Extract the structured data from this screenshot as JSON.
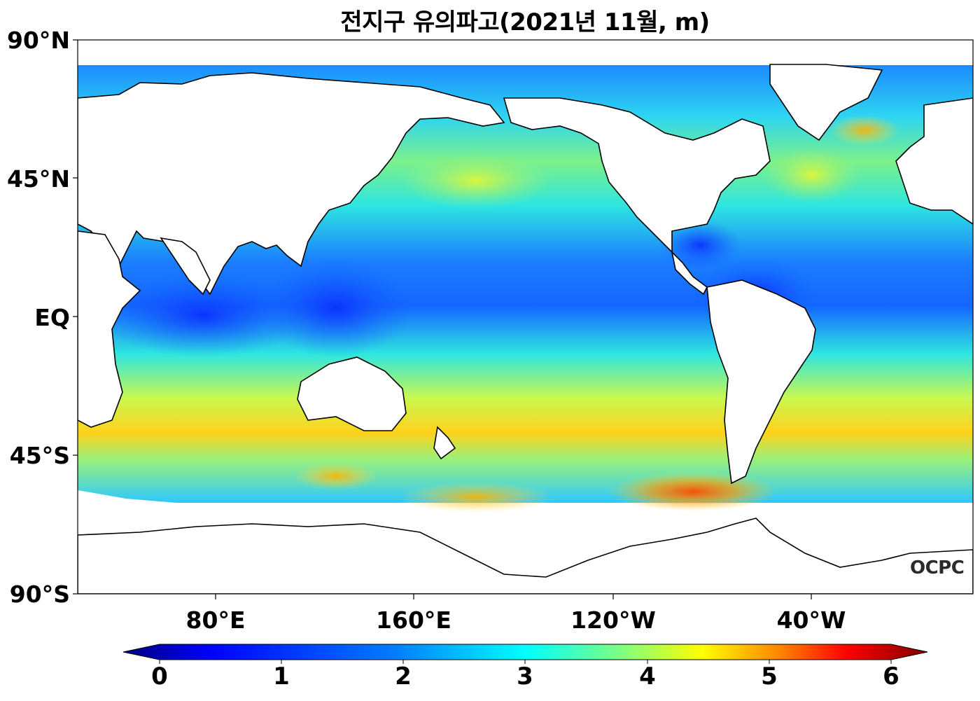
{
  "title": "전지구 유의파고(2021년 11월, m)",
  "y_ticks": [
    "90°N",
    "45°N",
    "EQ",
    "45°S",
    "90°S"
  ],
  "x_ticks": [
    "80°E",
    "160°E",
    "120°W",
    "40°W"
  ],
  "colorbar": {
    "ticks": [
      "0",
      "1",
      "2",
      "3",
      "4",
      "5",
      "6"
    ],
    "min": 0,
    "max": 6,
    "colors": [
      "#00007f",
      "#0000ff",
      "#007fff",
      "#00ffff",
      "#7fff7f",
      "#ffff00",
      "#ff7f00",
      "#ff0000",
      "#7f0000"
    ]
  },
  "logo": "OCPC"
}
